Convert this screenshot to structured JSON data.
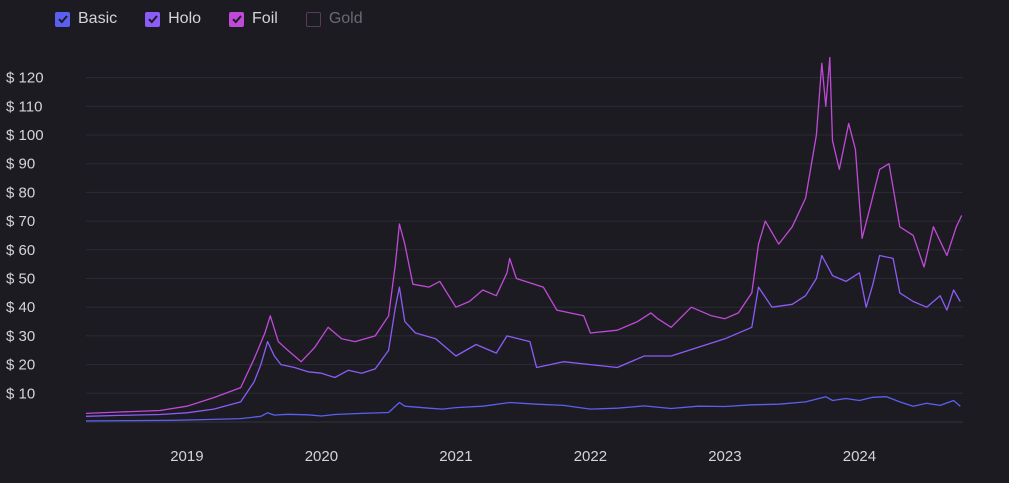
{
  "legend": [
    {
      "label": "Basic",
      "checked": true,
      "color": "#5b5ff0"
    },
    {
      "label": "Holo",
      "checked": true,
      "color": "#8b5cf6"
    },
    {
      "label": "Foil",
      "checked": true,
      "color": "#c04ad8"
    },
    {
      "label": "Gold",
      "checked": false,
      "color": "#5a3b5e"
    }
  ],
  "chart_data": {
    "type": "line",
    "ylim": [
      0,
      120
    ],
    "y_ticks": [
      10,
      20,
      30,
      40,
      50,
      60,
      70,
      80,
      90,
      100,
      110,
      120
    ],
    "y_tick_labels": [
      "$ 10",
      "$ 20",
      "$ 30",
      "$ 40",
      "$ 50",
      "$ 60",
      "$ 70",
      "$ 80",
      "$ 90",
      "$ 100",
      "$ 110",
      "$ 120"
    ],
    "x_range": [
      2018.25,
      2024.77
    ],
    "x_ticks": [
      2019,
      2020,
      2021,
      2022,
      2023,
      2024
    ],
    "x_tick_labels": [
      "2019",
      "2020",
      "2021",
      "2022",
      "2023",
      "2024"
    ],
    "grid": true,
    "legend_position": "top-left",
    "series": [
      {
        "name": "Basic",
        "color": "#5b5ff0",
        "points": [
          [
            2018.25,
            0.4
          ],
          [
            2018.6,
            0.5
          ],
          [
            2018.9,
            0.6
          ],
          [
            2019.2,
            0.9
          ],
          [
            2019.4,
            1.2
          ],
          [
            2019.55,
            2.0
          ],
          [
            2019.6,
            3.2
          ],
          [
            2019.65,
            2.4
          ],
          [
            2019.75,
            2.7
          ],
          [
            2019.9,
            2.5
          ],
          [
            2020.0,
            2.1
          ],
          [
            2020.1,
            2.6
          ],
          [
            2020.3,
            3.0
          ],
          [
            2020.5,
            3.3
          ],
          [
            2020.58,
            6.8
          ],
          [
            2020.62,
            5.5
          ],
          [
            2020.8,
            4.8
          ],
          [
            2020.9,
            4.5
          ],
          [
            2021.0,
            5.0
          ],
          [
            2021.2,
            5.5
          ],
          [
            2021.4,
            6.8
          ],
          [
            2021.6,
            6.2
          ],
          [
            2021.8,
            5.8
          ],
          [
            2022.0,
            4.5
          ],
          [
            2022.2,
            4.8
          ],
          [
            2022.4,
            5.6
          ],
          [
            2022.6,
            4.7
          ],
          [
            2022.8,
            5.5
          ],
          [
            2023.0,
            5.4
          ],
          [
            2023.2,
            6.0
          ],
          [
            2023.4,
            6.2
          ],
          [
            2023.6,
            7.0
          ],
          [
            2023.75,
            8.8
          ],
          [
            2023.8,
            7.5
          ],
          [
            2023.9,
            8.2
          ],
          [
            2024.0,
            7.5
          ],
          [
            2024.1,
            8.6
          ],
          [
            2024.2,
            8.8
          ],
          [
            2024.3,
            7.0
          ],
          [
            2024.4,
            5.5
          ],
          [
            2024.5,
            6.5
          ],
          [
            2024.6,
            5.8
          ],
          [
            2024.7,
            7.5
          ],
          [
            2024.75,
            5.5
          ]
        ]
      },
      {
        "name": "Holo",
        "color": "#8b5cf6",
        "points": [
          [
            2018.25,
            2.0
          ],
          [
            2018.5,
            2.3
          ],
          [
            2018.8,
            2.6
          ],
          [
            2019.0,
            3.2
          ],
          [
            2019.2,
            4.5
          ],
          [
            2019.4,
            7.0
          ],
          [
            2019.5,
            14.0
          ],
          [
            2019.55,
            20.0
          ],
          [
            2019.6,
            28.0
          ],
          [
            2019.65,
            23.0
          ],
          [
            2019.7,
            20.0
          ],
          [
            2019.8,
            19.0
          ],
          [
            2019.9,
            17.5
          ],
          [
            2020.0,
            17.0
          ],
          [
            2020.1,
            15.5
          ],
          [
            2020.2,
            18.0
          ],
          [
            2020.3,
            17.0
          ],
          [
            2020.4,
            18.5
          ],
          [
            2020.5,
            25.0
          ],
          [
            2020.55,
            40.0
          ],
          [
            2020.58,
            47.0
          ],
          [
            2020.62,
            35.0
          ],
          [
            2020.7,
            31.0
          ],
          [
            2020.85,
            29.0
          ],
          [
            2021.0,
            23.0
          ],
          [
            2021.15,
            27.0
          ],
          [
            2021.3,
            24.0
          ],
          [
            2021.38,
            30.0
          ],
          [
            2021.42,
            29.5
          ],
          [
            2021.55,
            28.0
          ],
          [
            2021.6,
            19.0
          ],
          [
            2021.8,
            21.0
          ],
          [
            2022.0,
            20.0
          ],
          [
            2022.2,
            19.0
          ],
          [
            2022.4,
            23.0
          ],
          [
            2022.6,
            23.0
          ],
          [
            2022.8,
            26.0
          ],
          [
            2023.0,
            29.0
          ],
          [
            2023.2,
            33.0
          ],
          [
            2023.25,
            47.0
          ],
          [
            2023.35,
            40.0
          ],
          [
            2023.5,
            41.0
          ],
          [
            2023.6,
            44.0
          ],
          [
            2023.68,
            50.0
          ],
          [
            2023.72,
            58.0
          ],
          [
            2023.8,
            51.0
          ],
          [
            2023.9,
            49.0
          ],
          [
            2024.0,
            52.0
          ],
          [
            2024.05,
            40.0
          ],
          [
            2024.1,
            48.0
          ],
          [
            2024.15,
            58.0
          ],
          [
            2024.25,
            57.0
          ],
          [
            2024.3,
            45.0
          ],
          [
            2024.4,
            42.0
          ],
          [
            2024.5,
            40.0
          ],
          [
            2024.6,
            44.0
          ],
          [
            2024.65,
            39.0
          ],
          [
            2024.7,
            46.0
          ],
          [
            2024.75,
            42.0
          ]
        ]
      },
      {
        "name": "Foil",
        "color": "#c04ad8",
        "points": [
          [
            2018.25,
            3.0
          ],
          [
            2018.5,
            3.5
          ],
          [
            2018.8,
            4.0
          ],
          [
            2019.0,
            5.5
          ],
          [
            2019.2,
            8.5
          ],
          [
            2019.4,
            12.0
          ],
          [
            2019.5,
            22.0
          ],
          [
            2019.58,
            31.0
          ],
          [
            2019.62,
            37.0
          ],
          [
            2019.68,
            28.0
          ],
          [
            2019.75,
            25.0
          ],
          [
            2019.85,
            21.0
          ],
          [
            2019.95,
            26.0
          ],
          [
            2020.05,
            33.0
          ],
          [
            2020.15,
            29.0
          ],
          [
            2020.25,
            28.0
          ],
          [
            2020.4,
            30.0
          ],
          [
            2020.5,
            37.0
          ],
          [
            2020.55,
            55.0
          ],
          [
            2020.58,
            69.0
          ],
          [
            2020.62,
            62.0
          ],
          [
            2020.68,
            48.0
          ],
          [
            2020.8,
            47.0
          ],
          [
            2020.88,
            49.0
          ],
          [
            2021.0,
            40.0
          ],
          [
            2021.1,
            42.0
          ],
          [
            2021.2,
            46.0
          ],
          [
            2021.3,
            44.0
          ],
          [
            2021.38,
            52.0
          ],
          [
            2021.4,
            57.0
          ],
          [
            2021.45,
            50.0
          ],
          [
            2021.65,
            47.0
          ],
          [
            2021.75,
            39.0
          ],
          [
            2021.95,
            37.0
          ],
          [
            2022.0,
            31.0
          ],
          [
            2022.2,
            32.0
          ],
          [
            2022.35,
            35.0
          ],
          [
            2022.45,
            38.0
          ],
          [
            2022.5,
            36.0
          ],
          [
            2022.6,
            33.0
          ],
          [
            2022.75,
            40.0
          ],
          [
            2022.9,
            37.0
          ],
          [
            2023.0,
            36.0
          ],
          [
            2023.1,
            38.0
          ],
          [
            2023.2,
            45.0
          ],
          [
            2023.25,
            62.0
          ],
          [
            2023.3,
            70.0
          ],
          [
            2023.4,
            62.0
          ],
          [
            2023.5,
            68.0
          ],
          [
            2023.6,
            78.0
          ],
          [
            2023.68,
            100.0
          ],
          [
            2023.72,
            125.0
          ],
          [
            2023.75,
            110.0
          ],
          [
            2023.78,
            127.0
          ],
          [
            2023.8,
            98.0
          ],
          [
            2023.85,
            88.0
          ],
          [
            2023.92,
            104.0
          ],
          [
            2023.97,
            95.0
          ],
          [
            2024.02,
            64.0
          ],
          [
            2024.08,
            75.0
          ],
          [
            2024.15,
            88.0
          ],
          [
            2024.22,
            90.0
          ],
          [
            2024.3,
            68.0
          ],
          [
            2024.4,
            65.0
          ],
          [
            2024.48,
            54.0
          ],
          [
            2024.55,
            68.0
          ],
          [
            2024.65,
            58.0
          ],
          [
            2024.72,
            68.0
          ],
          [
            2024.76,
            72.0
          ]
        ]
      }
    ]
  }
}
